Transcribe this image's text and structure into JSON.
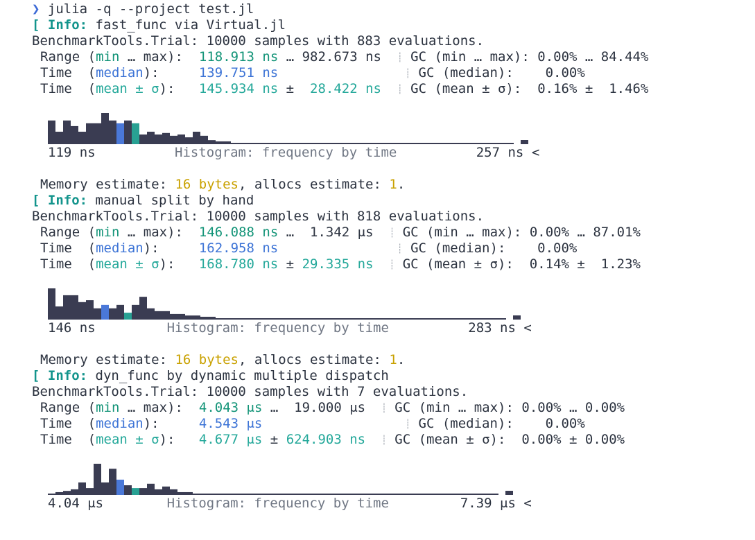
{
  "prompt": {
    "glyph": "❯",
    "command": "julia -q --project test.jl"
  },
  "info_tag": "[ Info:",
  "benchmarks": [
    {
      "info_text": "fast_func via Virtual.jl",
      "trial": "BenchmarkTools.Trial: 10000 samples with 883 evaluations.",
      "range_min": "118.913 ns",
      "range_max": "982.673 ns",
      "median": "139.751 ns",
      "mean": "145.934 ns",
      "std": " 28.422 ns",
      "gc_min": "0.00%",
      "gc_max": "84.44%",
      "gc_median": "0.00%",
      "gc_mean": "0.16%",
      "gc_std": " 1.46%",
      "hist_left": "119 ns",
      "hist_right": "257 ns",
      "hist_bars": [
        0.76,
        0.4,
        0.76,
        0.58,
        0.4,
        0.67,
        0.67,
        1.0,
        0.76,
        0.67,
        0.76,
        0.67,
        0.31,
        0.4,
        0.31,
        0.36,
        0.27,
        0.31,
        0.22,
        0.4,
        0.27,
        0.13,
        0.09,
        0.09,
        0.04,
        0.04,
        0.04,
        0.04,
        0.04,
        0.04
      ],
      "median_bin": 9,
      "mean_bin": 11,
      "memory": "16 bytes",
      "allocs": "1"
    },
    {
      "info_text": "manual split by hand",
      "trial": "BenchmarkTools.Trial: 10000 samples with 818 evaluations.",
      "range_min": "146.088 ns",
      "range_max": "1.342 μs",
      "median": "162.958 ns",
      "mean": "168.780 ns",
      "std": "29.335 ns",
      "gc_min": "0.00%",
      "gc_max": "87.01%",
      "gc_median": "0.00%",
      "gc_mean": "0.14%",
      "gc_std": " 1.23%",
      "hist_left": "146 ns",
      "hist_right": "283 ns",
      "hist_bars": [
        1.0,
        0.42,
        0.78,
        0.78,
        0.56,
        0.62,
        0.36,
        0.47,
        0.36,
        0.47,
        0.22,
        0.47,
        0.73,
        0.36,
        0.27,
        0.27,
        0.18,
        0.18,
        0.13,
        0.13,
        0.09,
        0.09,
        0.04,
        0.04,
        0.04,
        0.04
      ],
      "median_bin": 7,
      "mean_bin": 10,
      "memory": "16 bytes",
      "allocs": "1"
    },
    {
      "info_text": "dyn_func by dynamic multiple dispatch",
      "trial": "BenchmarkTools.Trial: 10000 samples with 7 evaluations.",
      "range_min": "4.043 μs",
      "range_max": "19.000 μs",
      "median": "4.543 μs",
      "mean": "4.677 μs",
      "std": "624.903 ns",
      "gc_min": "0.00%",
      "gc_max": "0.00%",
      "gc_median": "0.00%",
      "gc_mean": "0.00%",
      "gc_std": "0.00%",
      "hist_left": "4.04 μs",
      "hist_right": "7.39 μs",
      "hist_bars": [
        0.04,
        0.09,
        0.13,
        0.18,
        0.4,
        0.22,
        1.0,
        0.4,
        0.84,
        0.49,
        0.31,
        0.22,
        0.22,
        0.36,
        0.18,
        0.27,
        0.18,
        0.09,
        0.09,
        0.04,
        0.04
      ],
      "median_bin": 9,
      "mean_bin": 11,
      "memory": "16 bytes",
      "allocs": "1"
    }
  ],
  "labels": {
    "range_key": "Range",
    "range_paren_open": "(",
    "range_min_word": "min",
    "range_ellipsis": " … ",
    "range_max_word": "max",
    "range_paren_close": "):",
    "time_key": "Time",
    "median_word": "median",
    "mean_word": "mean ± σ",
    "gc_key": "GC",
    "pm": "±",
    "hist_title": "Histogram: frequency by time",
    "hist_more": "<",
    "memory_key": "Memory estimate",
    "allocs_key": "allocs estimate",
    "separator": "┊"
  },
  "colors": {
    "bar": "#3a3c52",
    "median_bar": "#4a78d8",
    "mean_bar": "#28a193",
    "green": "#139478",
    "blue": "#3d74d6",
    "yellow": "#c9a100"
  }
}
